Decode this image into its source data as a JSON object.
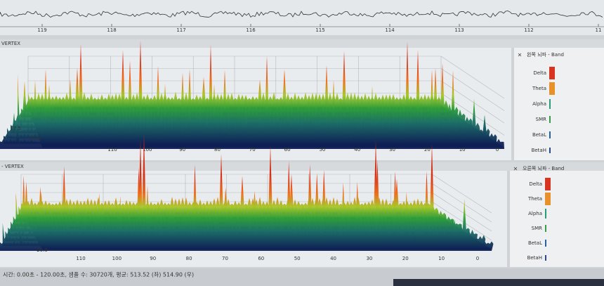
{
  "top_strip": {
    "ticks": [
      "119",
      "118",
      "117",
      "116",
      "115",
      "114",
      "113",
      "112",
      "11"
    ]
  },
  "panels": [
    {
      "title": "VERTEX",
      "band_title": "왼쪽 뇌파 - Band",
      "depth_labels": [
        "20.0",
        "17.5"
      ],
      "x_labels": [
        "110",
        "100",
        "90",
        "80",
        "70",
        "60",
        "50",
        "40",
        "30",
        "20",
        "10",
        "0"
      ],
      "bands": [
        "Delta",
        "Theta",
        "Alpha",
        "SMR",
        "BetaL",
        "BetaH"
      ]
    },
    {
      "title": "- VERTEX",
      "band_title": "오른쪽 뇌파 - Band",
      "depth_labels": [
        "20.0"
      ],
      "x_labels": [
        "110",
        "100",
        "90",
        "80",
        "70",
        "60",
        "50",
        "40",
        "30",
        "20",
        "10",
        "0"
      ],
      "bands": [
        "Delta",
        "Theta",
        "Alpha",
        "SMR",
        "BetaL",
        "BetaH"
      ]
    }
  ],
  "status_bar": "시간: 0.00초 - 120.00초, 샘플 수: 30720개, 평균: 513.52 (좌) 514.90 (우)"
}
